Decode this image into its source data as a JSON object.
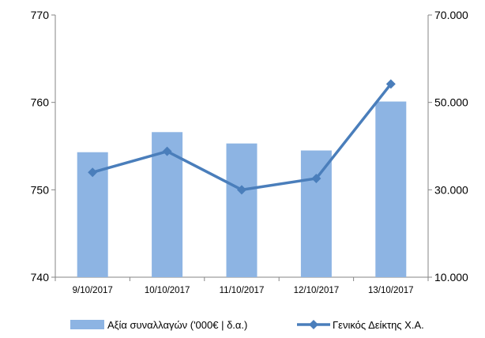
{
  "chart_data": {
    "type": "bar",
    "categories": [
      "9/10/2017",
      "10/10/2017",
      "11/10/2017",
      "12/10/2017",
      "13/10/2017"
    ],
    "series": [
      {
        "name": "Αξία συναλλαγών ('000€ | δ.α.)",
        "type": "bar",
        "axis": "left",
        "color": "#8DB4E3",
        "values": [
          754.3,
          756.6,
          755.3,
          754.5,
          760.1
        ]
      },
      {
        "name": "Γενικός Δείκτης Χ.Α.",
        "type": "line",
        "axis": "right",
        "color": "#4A7EBB",
        "marker": "diamond",
        "values": [
          752.0,
          754.4,
          750.0,
          751.3,
          762.1
        ]
      }
    ],
    "left_axis": {
      "ylim": [
        740,
        770
      ],
      "ticks": [
        "740",
        "750",
        "760",
        "770"
      ],
      "tick_values": [
        740,
        750,
        760,
        770
      ]
    },
    "right_axis": {
      "ticks": [
        "10.000",
        "30.000",
        "50.000",
        "70.000"
      ],
      "tick_values": [
        740,
        750,
        760,
        770
      ]
    },
    "grid": false,
    "legend_position": "bottom"
  }
}
